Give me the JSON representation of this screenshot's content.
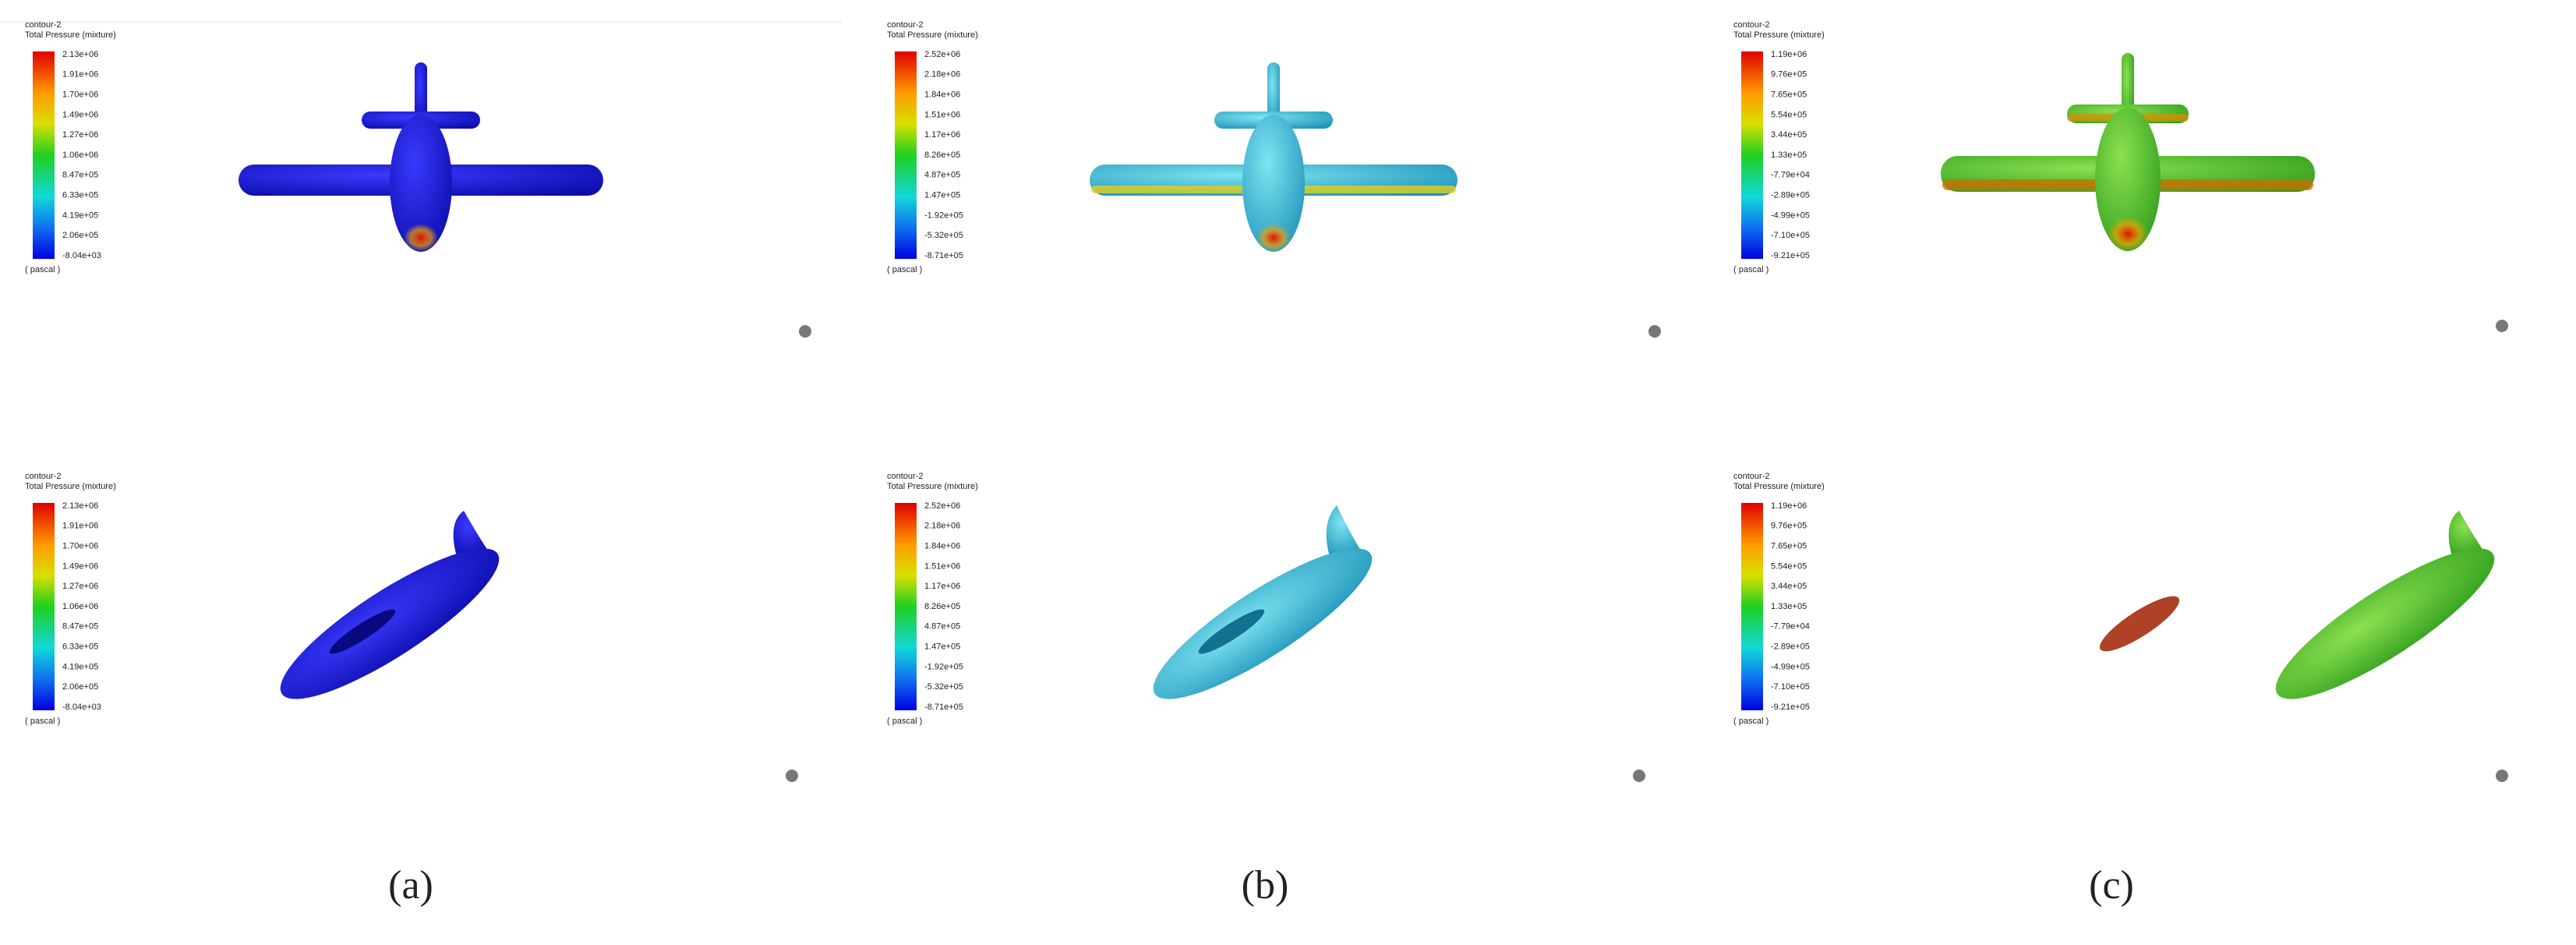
{
  "panels": [
    {
      "legend": {
        "title": "contour-2",
        "subtitle": "Total Pressure (mixture)",
        "ticks": [
          "2.13e+06",
          "1.91e+06",
          "1.70e+06",
          "1.49e+06",
          "1.27e+06",
          "1.06e+06",
          "8.47e+05",
          "6.33e+05",
          "4.19e+05",
          "2.06e+05",
          "-8.04e+03"
        ],
        "unit": "( pascal )"
      }
    },
    {
      "legend": {
        "title": "contour-2",
        "subtitle": "Total Pressure (mixture)",
        "ticks": [
          "2.52e+06",
          "2.18e+06",
          "1.84e+06",
          "1.51e+06",
          "1.17e+06",
          "8.26e+05",
          "4.87e+05",
          "1.47e+05",
          "-1.92e+05",
          "-5.32e+05",
          "-8.71e+05"
        ],
        "unit": "( pascal )"
      }
    },
    {
      "legend": {
        "title": "contour-2",
        "subtitle": "Total Pressure (mixture)",
        "ticks": [
          "1.19e+06",
          "9.76e+05",
          "7.65e+05",
          "5.54e+05",
          "3.44e+05",
          "1.33e+05",
          "-7.79e+04",
          "-2.89e+05",
          "-4.99e+05",
          "-7.10e+05",
          "-9.21e+05"
        ],
        "unit": "( pascal )"
      }
    },
    {
      "legend": {
        "title": "contour-2",
        "subtitle": "Total Pressure (mixture)",
        "ticks": [
          "2.13e+06",
          "1.91e+06",
          "1.70e+06",
          "1.49e+06",
          "1.27e+06",
          "1.06e+06",
          "8.47e+05",
          "6.33e+05",
          "4.19e+05",
          "2.06e+05",
          "-8.04e+03"
        ],
        "unit": "( pascal )"
      }
    },
    {
      "legend": {
        "title": "contour-2",
        "subtitle": "Total Pressure (mixture)",
        "ticks": [
          "2.52e+06",
          "2.18e+06",
          "1.84e+06",
          "1.51e+06",
          "1.17e+06",
          "8.26e+05",
          "4.87e+05",
          "1.47e+05",
          "-1.92e+05",
          "-5.32e+05",
          "-8.71e+05"
        ],
        "unit": "( pascal )"
      }
    },
    {
      "legend": {
        "title": "contour-2",
        "subtitle": "Total Pressure (mixture)",
        "ticks": [
          "1.19e+06",
          "9.76e+05",
          "7.65e+05",
          "5.54e+05",
          "3.44e+05",
          "1.33e+05",
          "-7.79e+04",
          "-2.89e+05",
          "-4.99e+05",
          "-7.10e+05",
          "-9.21e+05"
        ],
        "unit": "( pascal )"
      }
    }
  ],
  "captions": [
    "(a)",
    "(b)",
    "(c)"
  ]
}
